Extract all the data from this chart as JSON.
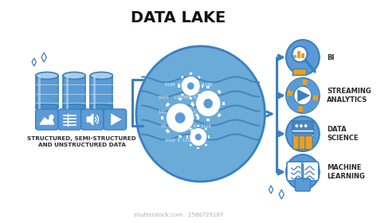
{
  "title": "DATA LAKE",
  "title_fontsize": 14,
  "bg_color": "#ffffff",
  "outline_color": "#3a7fc1",
  "lake_color": "#5b9bd5",
  "icon_bg": "#5b9bd5",
  "arrow_color": "#3a7fc1",
  "label_color": "#2a2a2a",
  "source_label": "STRUCTURED, SEMI-STRUCTURED\nAND UNSTRUCTURED DATA",
  "output_labels": [
    "BI",
    "STREAMING\nANALYTICS",
    "DATA\nSCIENCE",
    "MACHINE\nLEARNING"
  ],
  "accent_color": "#e8a020",
  "label_fontsize": 6.0,
  "source_fontsize": 5.2,
  "cyl_color": "#5b9bd5",
  "cyl_light": "#a8c8e8",
  "cyl_dark": "#3a7fc1",
  "icon_box_color": "#5b9bd5"
}
